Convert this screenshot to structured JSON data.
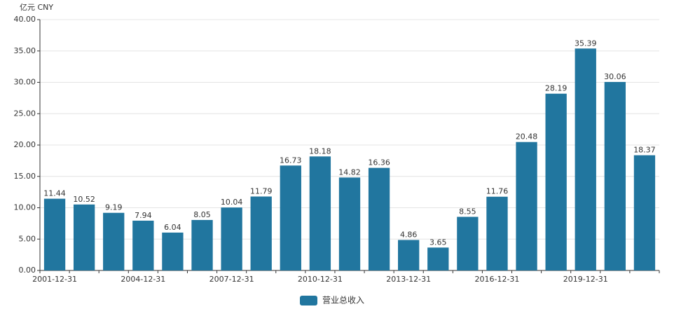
{
  "chart_data": {
    "type": "bar",
    "y_label": "亿元  CNY",
    "categories": [
      "2001-12-31",
      null,
      null,
      "2004-12-31",
      null,
      null,
      "2007-12-31",
      null,
      null,
      "2010-12-31",
      null,
      null,
      "2013-12-31",
      null,
      null,
      "2016-12-31",
      null,
      null,
      "2019-12-31",
      null,
      null
    ],
    "series": [
      {
        "name": "营业总收入",
        "color": "#21769f",
        "values": [
          11.44,
          10.52,
          9.19,
          7.94,
          6.04,
          8.05,
          10.04,
          11.79,
          16.73,
          18.18,
          14.82,
          16.36,
          4.86,
          3.65,
          8.55,
          11.76,
          20.48,
          28.19,
          35.39,
          30.06,
          18.37
        ]
      }
    ],
    "ylim": [
      0,
      40
    ],
    "yticks": [
      {
        "value": 0,
        "label": "0.00"
      },
      {
        "value": 5,
        "label": "5.00"
      },
      {
        "value": 10,
        "label": "10.00"
      },
      {
        "value": 15,
        "label": "15.00"
      },
      {
        "value": 20,
        "label": "20.00"
      },
      {
        "value": 25,
        "label": "25.00"
      },
      {
        "value": 30,
        "label": "30.00"
      },
      {
        "value": 35,
        "label": "35.00"
      },
      {
        "value": 40,
        "label": "40.00"
      }
    ],
    "grid": true,
    "legend": "bottom"
  }
}
